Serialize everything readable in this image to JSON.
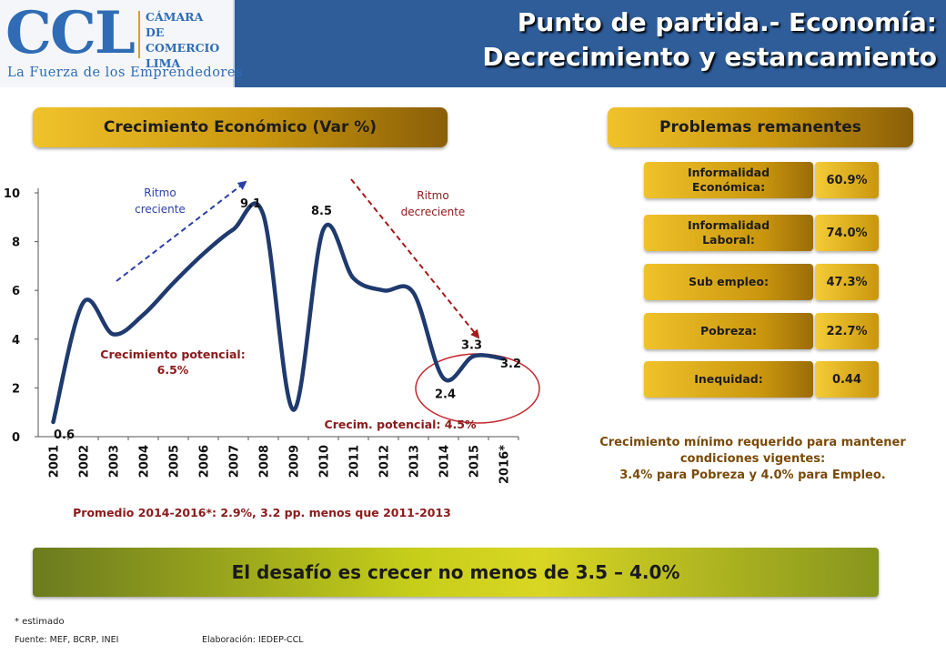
{
  "header": {
    "logo_text": "CCL",
    "logo_org_line1": "CÁMARA",
    "logo_org_line2": "DE COMERCIO",
    "logo_org_line3": "LIMA",
    "logo_tagline": "La Fuerza de los Emprendedores",
    "title_line1": "Punto de partida.- Economía:",
    "title_line2": "Decrecimiento y estancamiento"
  },
  "growth_panel": {
    "title": "Crecimiento Económico (Var %)",
    "annotation_rising": [
      "Ritmo",
      "creciente"
    ],
    "annotation_falling": [
      "Ritmo",
      "decreciente"
    ],
    "potential_1": [
      "Crecimiento potencial:",
      "6.5%"
    ],
    "potential_2": "Crecim. potencial: 4.5%",
    "average_note": "Promedio 2014-2016*: 2.9%, 3.2 pp. menos que 2011-2013"
  },
  "chart_data": {
    "type": "line",
    "title": "Crecimiento Económico (Var %)",
    "x": [
      "2001",
      "2002",
      "2003",
      "2004",
      "2005",
      "2006",
      "2007",
      "2008",
      "2009",
      "2010",
      "2011",
      "2012",
      "2013",
      "2014",
      "2015",
      "2016*"
    ],
    "y": [
      0.6,
      5.5,
      4.2,
      5.0,
      6.3,
      7.5,
      8.5,
      9.1,
      1.1,
      8.5,
      6.5,
      6.0,
      5.9,
      2.4,
      3.3,
      3.2
    ],
    "ylim": [
      0,
      10
    ],
    "yticks": [
      "0",
      "2",
      "4",
      "6",
      "8",
      "10"
    ],
    "point_labels": [
      {
        "x": "2001",
        "text": "0.6"
      },
      {
        "x": "2008",
        "text": "9.1"
      },
      {
        "x": "2010",
        "text": "8.5"
      },
      {
        "x": "2014",
        "text": "2.4"
      },
      {
        "x": "2015",
        "text": "3.3"
      },
      {
        "x": "2016*",
        "text": "3.2"
      }
    ],
    "colors": {
      "line": "#1f3a6e",
      "rising_arrow": "#2b3fa8",
      "falling_arrow": "#a21c1c",
      "highlight_ellipse": "#c4262e",
      "annotation_text": "#8b1a1a"
    }
  },
  "problems_panel": {
    "title": "Problemas remanentes",
    "items": [
      {
        "label": [
          "Informalidad",
          "Económica:"
        ],
        "value": "60.9%"
      },
      {
        "label": [
          "Informalidad",
          "Laboral:"
        ],
        "value": "74.0%"
      },
      {
        "label": [
          "Sub empleo:"
        ],
        "value": "47.3%"
      },
      {
        "label": [
          "Pobreza:"
        ],
        "value": "22.7%"
      },
      {
        "label": [
          "Inequidad:"
        ],
        "value": "0.44"
      }
    ],
    "min_growth_line1": "Crecimiento mínimo requerido para mantener",
    "min_growth_line2": "condiciones vigentes:",
    "min_growth_line3": "3.4% para Pobreza y 4.0% para Empleo."
  },
  "challenge": "El desafío es crecer no menos de 3.5 – 4.0%",
  "footer": {
    "footnote": "* estimado",
    "source": "Fuente: MEF, BCRP, INEI",
    "credits": "Elaboración: IEDEP-CCL"
  }
}
